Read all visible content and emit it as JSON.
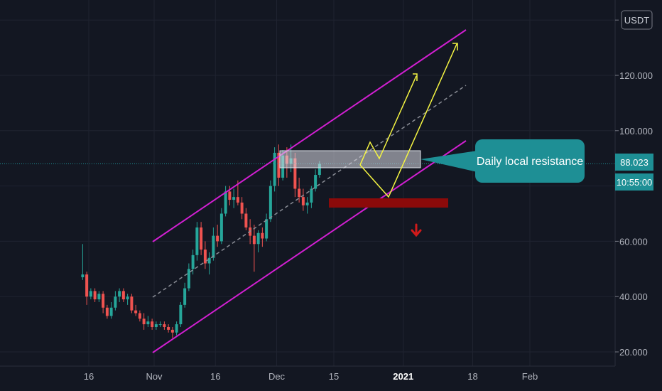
{
  "chart_data": {
    "type": "candlestick",
    "currency_label": "USDT",
    "y_axis": {
      "ticks": [
        20,
        40,
        60,
        80,
        100,
        120,
        140
      ],
      "tick_labels": [
        "20.000",
        "40.000",
        "60.000",
        "",
        "100.000",
        "120.000",
        ""
      ],
      "range": [
        17,
        147
      ]
    },
    "x_axis": {
      "ticks": [
        {
          "day": 0,
          "label": "16",
          "bold": false
        },
        {
          "day": 16,
          "label": "Nov",
          "bold": false
        },
        {
          "day": 31,
          "label": "16",
          "bold": false
        },
        {
          "day": 46,
          "label": "Dec",
          "bold": false
        },
        {
          "day": 60,
          "label": "15",
          "bold": false
        },
        {
          "day": 77,
          "label": "2021",
          "bold": true
        },
        {
          "day": 94,
          "label": "18",
          "bold": false
        },
        {
          "day": 108,
          "label": "Feb",
          "bold": false
        }
      ],
      "range": [
        -20,
        118
      ]
    },
    "last_price": "88.023",
    "countdown": "10:55:00",
    "candles": [
      [
        47,
        59,
        46,
        48
      ],
      [
        48,
        49,
        37,
        40
      ],
      [
        40,
        43,
        39,
        42
      ],
      [
        42,
        43,
        38,
        39
      ],
      [
        39,
        42,
        38,
        41
      ],
      [
        41,
        42,
        34,
        36
      ],
      [
        36,
        37,
        32,
        33
      ],
      [
        33,
        38,
        32,
        36
      ],
      [
        36,
        42,
        35,
        40
      ],
      [
        40,
        43,
        38,
        42
      ],
      [
        42,
        43,
        38,
        39
      ],
      [
        39,
        41,
        37,
        40
      ],
      [
        40,
        41,
        34,
        35
      ],
      [
        35,
        37,
        33,
        34
      ],
      [
        34,
        35,
        31,
        32
      ],
      [
        32,
        34,
        28,
        30
      ],
      [
        30,
        33,
        29,
        31
      ],
      [
        31,
        32,
        28,
        29
      ],
      [
        29,
        31,
        28,
        30
      ],
      [
        30,
        31,
        29,
        30
      ],
      [
        30,
        31,
        28,
        29
      ],
      [
        29,
        30,
        27,
        28
      ],
      [
        28,
        29,
        25,
        27
      ],
      [
        27,
        31,
        26,
        30
      ],
      [
        30,
        38,
        29,
        37
      ],
      [
        37,
        45,
        36,
        43
      ],
      [
        43,
        52,
        42,
        50
      ],
      [
        50,
        57,
        48,
        55
      ],
      [
        55,
        67,
        53,
        65
      ],
      [
        65,
        67,
        55,
        57
      ],
      [
        57,
        60,
        50,
        52
      ],
      [
        52,
        56,
        48,
        54
      ],
      [
        54,
        65,
        53,
        62
      ],
      [
        62,
        66,
        58,
        60
      ],
      [
        60,
        72,
        59,
        70
      ],
      [
        70,
        80,
        69,
        78
      ],
      [
        78,
        80,
        73,
        75
      ],
      [
        75,
        79,
        72,
        76
      ],
      [
        76,
        82,
        73,
        74
      ],
      [
        74,
        76,
        68,
        70
      ],
      [
        70,
        72,
        64,
        65
      ],
      [
        65,
        68,
        59,
        62
      ],
      [
        62,
        66,
        49,
        59
      ],
      [
        59,
        64,
        56,
        63
      ],
      [
        63,
        65,
        58,
        61
      ],
      [
        61,
        70,
        60,
        68
      ],
      [
        68,
        82,
        67,
        80
      ],
      [
        80,
        94,
        78,
        92
      ],
      [
        92,
        95,
        80,
        83
      ],
      [
        83,
        93,
        82,
        91
      ],
      [
        91,
        94,
        83,
        88
      ],
      [
        88,
        95,
        85,
        90
      ],
      [
        90,
        92,
        76,
        79
      ],
      [
        79,
        83,
        74,
        76
      ],
      [
        76,
        79,
        71,
        73
      ],
      [
        73,
        76,
        70,
        74
      ],
      [
        74,
        80,
        72,
        79
      ],
      [
        79,
        86,
        78,
        84
      ],
      [
        84,
        89,
        83,
        88
      ]
    ],
    "annotations": {
      "callout_text": "Daily local resistance"
    },
    "colors": {
      "up": "#26a69a",
      "down": "#ef5350",
      "channel": "#d21fd2",
      "projection": "#f5f542",
      "support_zone": "#8b0a0a",
      "callout": "#1e8f95",
      "price_line": "#1e8f95"
    }
  }
}
